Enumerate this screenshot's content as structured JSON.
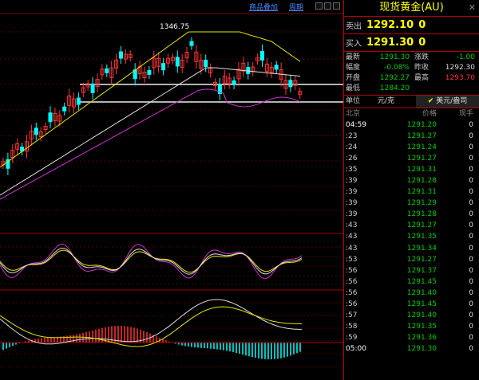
{
  "toolbar": {
    "add_instrument": "商品叠加",
    "period": "周期"
  },
  "chart_annotation": {
    "high_label": "1346.75"
  },
  "panel": {
    "title": "现货黄金(AU)",
    "close_symbol": "✕",
    "sell_label": "卖出",
    "sell_price": "1292.10",
    "sell_qty": "0",
    "buy_label": "买入",
    "buy_price": "1291.30",
    "buy_qty": "0",
    "stats": [
      {
        "l1": "最新",
        "v1": "1291.30",
        "l2": "涨跌",
        "v2": "-1.00"
      },
      {
        "l1": "幅度",
        "v1": "-0.08%",
        "l2": "昨收",
        "v2": "1292.30"
      },
      {
        "l1": "开盘",
        "v1": "1292.27",
        "l2": "最高",
        "v2": "1293.70"
      },
      {
        "l1": "最低",
        "v1": "1284.20",
        "l2": "",
        "v2": ""
      }
    ],
    "unit_label": "单位",
    "unit_value": "元/克",
    "unit_option": "美元/盎司",
    "table_headers": [
      "北京",
      "价格",
      "现手"
    ],
    "ticks": [
      {
        "time": "04:59",
        "price": "1291.20",
        "vol": "0"
      },
      {
        "time": ":23",
        "price": "1291.27",
        "vol": "0"
      },
      {
        "time": ":24",
        "price": "1291.24",
        "vol": "0"
      },
      {
        "time": ":26",
        "price": "1291.27",
        "vol": "0"
      },
      {
        "time": ":35",
        "price": "1291.31",
        "vol": "0"
      },
      {
        "time": ":39",
        "price": "1291.28",
        "vol": "0"
      },
      {
        "time": ":39",
        "price": "1291.31",
        "vol": "0"
      },
      {
        "time": ":39",
        "price": "1291.29",
        "vol": "0"
      },
      {
        "time": ":39",
        "price": "1291.28",
        "vol": "0"
      },
      {
        "time": ":43",
        "price": "1291.27",
        "vol": "0"
      },
      {
        "time": ":43",
        "price": "1291.35",
        "vol": "0"
      },
      {
        "time": ":43",
        "price": "1291.34",
        "vol": "0"
      },
      {
        "time": ":53",
        "price": "1291.27",
        "vol": "0"
      },
      {
        "time": ":56",
        "price": "1291.37",
        "vol": "0"
      },
      {
        "time": ":56",
        "price": "1291.45",
        "vol": "0"
      },
      {
        "time": ":56",
        "price": "1291.40",
        "vol": "0"
      },
      {
        "time": ":56",
        "price": "1291.45",
        "vol": "0"
      },
      {
        "time": ":57",
        "price": "1291.40",
        "vol": "0"
      },
      {
        "time": ":58",
        "price": "1291.35",
        "vol": "0"
      },
      {
        "time": ":59",
        "price": "1291.36",
        "vol": "0"
      },
      {
        "time": "05:00",
        "price": "1291.30",
        "vol": "0"
      }
    ]
  },
  "colors": {
    "up": "#ff3333",
    "down": "#00ffff",
    "price_green": "#00cc00",
    "accent_yellow": "#ffff00",
    "grid_red": "#aa0000",
    "magenta": "#cc33cc"
  }
}
